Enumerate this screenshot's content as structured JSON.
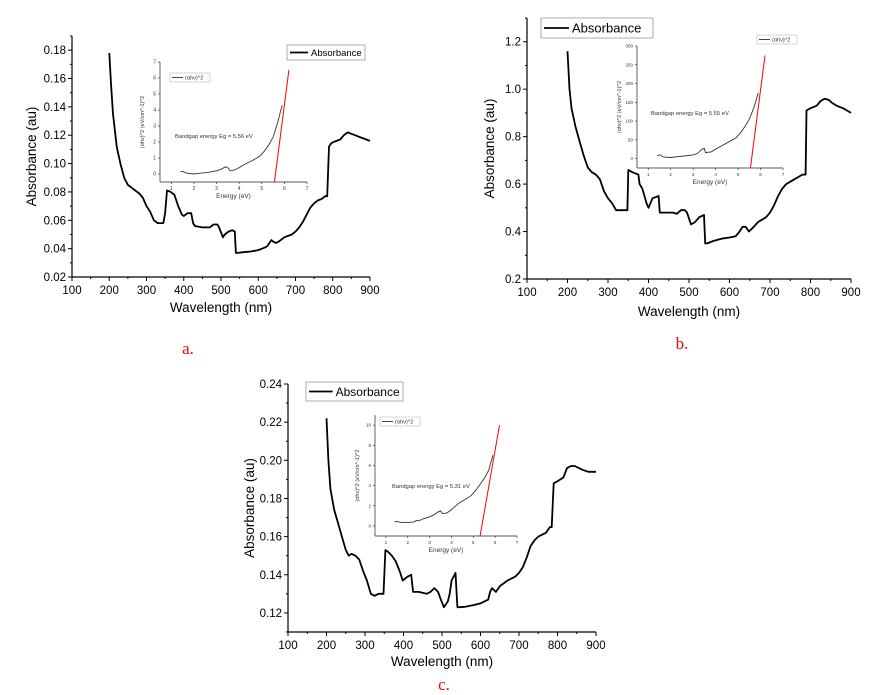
{
  "chart_data": [
    {
      "type": "line",
      "panel_label": "a.",
      "xlabel": "Wavelength (nm)",
      "ylabel": "Absorbance (au)",
      "xlim": [
        100,
        900
      ],
      "ylim": [
        0.02,
        0.19
      ],
      "xticks": [
        100,
        200,
        300,
        400,
        500,
        600,
        700,
        800,
        900
      ],
      "xtick_labels": [
        "100",
        "200",
        "300",
        "400",
        "500",
        "600",
        "700",
        "800",
        "900"
      ],
      "yticks": [
        0.02,
        0.04,
        0.06,
        0.08,
        0.1,
        0.12,
        0.14,
        0.16,
        0.18
      ],
      "ytick_labels": [
        "0.02",
        "0.04",
        "0.06",
        "0.08",
        "0.10",
        "0.12",
        "0.14",
        "0.16",
        "0.18"
      ],
      "grid": false,
      "legend": {
        "placement": "top-right",
        "entries": [
          "Absorbance"
        ]
      },
      "series": [
        {
          "name": "Absorbance",
          "color": "#000000",
          "x": [
            200,
            205,
            210,
            220,
            230,
            240,
            250,
            260,
            270,
            280,
            290,
            300,
            310,
            320,
            330,
            345,
            350,
            355,
            365,
            375,
            385,
            395,
            400,
            410,
            420,
            425,
            430,
            450,
            470,
            480,
            490,
            495,
            505,
            510,
            520,
            530,
            537,
            540,
            545,
            560,
            580,
            600,
            620,
            625,
            635,
            640,
            648,
            655,
            670,
            690,
            700,
            710,
            720,
            730,
            740,
            750,
            760,
            770,
            780,
            785,
            790,
            795,
            800,
            810,
            820,
            830,
            840,
            850,
            860,
            870,
            880,
            890,
            900
          ],
          "y": [
            0.178,
            0.155,
            0.135,
            0.112,
            0.1,
            0.09,
            0.085,
            0.083,
            0.081,
            0.079,
            0.076,
            0.07,
            0.066,
            0.06,
            0.058,
            0.058,
            0.065,
            0.081,
            0.08,
            0.078,
            0.07,
            0.064,
            0.063,
            0.065,
            0.065,
            0.058,
            0.056,
            0.055,
            0.055,
            0.057,
            0.057,
            0.055,
            0.048,
            0.05,
            0.052,
            0.053,
            0.052,
            0.037,
            0.037,
            0.0375,
            0.038,
            0.039,
            0.041,
            0.042,
            0.046,
            0.045,
            0.044,
            0.045,
            0.048,
            0.05,
            0.052,
            0.055,
            0.059,
            0.064,
            0.069,
            0.072,
            0.074,
            0.075,
            0.077,
            0.077,
            0.112,
            0.114,
            0.115,
            0.116,
            0.117,
            0.12,
            0.122,
            0.121,
            0.12,
            0.119,
            0.118,
            0.117,
            0.116
          ]
        }
      ],
      "inset": {
        "xlabel": "Energy (eV)",
        "ylabel": "(αhν)^2 (eV/cm^-1)^2",
        "xlim": [
          0.5,
          7
        ],
        "ylim": [
          -0.5,
          7
        ],
        "xticks": [
          1,
          2,
          3,
          4,
          5,
          6,
          7
        ],
        "xtick_labels": [
          "1",
          "2",
          "3",
          "4",
          "5",
          "6",
          "7"
        ],
        "yticks": [
          0,
          1,
          2,
          3,
          4,
          5,
          6,
          7
        ],
        "ytick_labels": [
          "0",
          "1",
          "2",
          "3",
          "4",
          "5",
          "6",
          "7"
        ],
        "legend": {
          "placement": "top-left",
          "entries": [
            "(αhν)^2"
          ]
        },
        "annotation": "Bandgap energy Eg = 5.56 eV",
        "series": [
          {
            "name": "(αhν)^2",
            "color": "#333333",
            "x": [
              1.4,
              1.5,
              1.6,
              1.7,
              2.0,
              2.3,
              2.6,
              3.0,
              3.2,
              3.4,
              3.5,
              3.6,
              3.8,
              4.0,
              4.3,
              4.6,
              4.9,
              5.1,
              5.3,
              5.5,
              5.7,
              5.9
            ],
            "y": [
              0.15,
              0.15,
              0.1,
              0.05,
              0.0,
              0.05,
              0.1,
              0.2,
              0.3,
              0.45,
              0.4,
              0.2,
              0.25,
              0.4,
              0.65,
              0.85,
              1.1,
              1.4,
              1.8,
              2.3,
              3.2,
              4.3
            ]
          }
        ],
        "fit_line": {
          "name": "linear fit",
          "color": "#ff0000",
          "x": [
            5.56,
            6.2
          ],
          "y": [
            -0.5,
            6.5
          ]
        }
      }
    },
    {
      "type": "line",
      "panel_label": "b.",
      "xlabel": "Wavelength (nm)",
      "ylabel": "Absorbance (au)",
      "xlim": [
        100,
        900
      ],
      "ylim": [
        0.2,
        1.3
      ],
      "xticks": [
        100,
        200,
        300,
        400,
        500,
        600,
        700,
        800,
        900
      ],
      "xtick_labels": [
        "100",
        "200",
        "300",
        "400",
        "500",
        "600",
        "700",
        "800",
        "900"
      ],
      "yticks": [
        0.2,
        0.4,
        0.6,
        0.8,
        1.0,
        1.2
      ],
      "ytick_labels": [
        "0.2",
        "0.4",
        "0.6",
        "0.8",
        "1.0",
        "1.2"
      ],
      "grid": false,
      "legend": {
        "placement": "top-left",
        "entries": [
          "Absorbance"
        ]
      },
      "series": [
        {
          "name": "Absorbance",
          "color": "#000000",
          "x": [
            200,
            205,
            210,
            220,
            230,
            240,
            250,
            260,
            270,
            280,
            290,
            300,
            310,
            320,
            325,
            335,
            348,
            350,
            360,
            375,
            378,
            385,
            395,
            400,
            410,
            425,
            428,
            440,
            460,
            470,
            480,
            490,
            495,
            505,
            515,
            525,
            537,
            540,
            545,
            560,
            580,
            600,
            615,
            625,
            632,
            640,
            648,
            660,
            670,
            690,
            700,
            710,
            720,
            730,
            740,
            750,
            760,
            770,
            780,
            788,
            790,
            800,
            815,
            825,
            835,
            845,
            855,
            865,
            880,
            890,
            900
          ],
          "y": [
            1.16,
            1.0,
            0.92,
            0.84,
            0.78,
            0.72,
            0.67,
            0.65,
            0.64,
            0.62,
            0.57,
            0.54,
            0.52,
            0.49,
            0.49,
            0.49,
            0.49,
            0.66,
            0.65,
            0.64,
            0.6,
            0.58,
            0.52,
            0.5,
            0.54,
            0.55,
            0.48,
            0.48,
            0.48,
            0.475,
            0.49,
            0.49,
            0.48,
            0.43,
            0.44,
            0.46,
            0.47,
            0.35,
            0.35,
            0.36,
            0.37,
            0.375,
            0.38,
            0.4,
            0.42,
            0.42,
            0.4,
            0.42,
            0.44,
            0.46,
            0.48,
            0.51,
            0.55,
            0.58,
            0.6,
            0.61,
            0.62,
            0.63,
            0.64,
            0.64,
            0.91,
            0.92,
            0.93,
            0.95,
            0.96,
            0.955,
            0.94,
            0.93,
            0.92,
            0.91,
            0.9
          ]
        }
      ],
      "inset": {
        "xlabel": "Energy (eV)",
        "ylabel": "(αhν)^2 (eV/cm^-1)^2",
        "xlim": [
          0.5,
          7
        ],
        "ylim": [
          -25,
          300
        ],
        "xticks": [
          1,
          2,
          3,
          4,
          5,
          6,
          7
        ],
        "xtick_labels": [
          "1",
          "2",
          "3",
          "4",
          "5",
          "6",
          "7"
        ],
        "yticks": [
          0,
          50,
          100,
          150,
          200,
          250,
          300
        ],
        "ytick_labels": [
          "0",
          "50",
          "100",
          "150",
          "200",
          "250",
          "300"
        ],
        "legend": {
          "placement": "top-right",
          "entries": [
            "(αhν)^2"
          ]
        },
        "annotation": "Bandgap energy Eg = 5.55 eV",
        "series": [
          {
            "name": "(αhν)^2",
            "color": "#333333",
            "x": [
              1.4,
              1.5,
              1.6,
              1.7,
              2.0,
              2.3,
              2.6,
              3.0,
              3.2,
              3.4,
              3.5,
              3.55,
              3.8,
              4.0,
              4.3,
              4.6,
              4.9,
              5.1,
              5.3,
              5.5,
              5.7,
              5.9
            ],
            "y": [
              8,
              10,
              7,
              4,
              3,
              5,
              7,
              10,
              14,
              25,
              27,
              16,
              18,
              25,
              35,
              45,
              55,
              68,
              85,
              105,
              135,
              175
            ]
          }
        ],
        "fit_line": {
          "name": "linear fit",
          "color": "#ff0000",
          "x": [
            5.55,
            6.2
          ],
          "y": [
            -25,
            275
          ]
        }
      }
    },
    {
      "type": "line",
      "panel_label": "c.",
      "xlabel": "Wavelength (nm)",
      "ylabel": "Absorbance (au)",
      "xlim": [
        100,
        900
      ],
      "ylim": [
        0.11,
        0.24
      ],
      "xticks": [
        100,
        200,
        300,
        400,
        500,
        600,
        700,
        800,
        900
      ],
      "xtick_labels": [
        "100",
        "200",
        "300",
        "400",
        "500",
        "600",
        "700",
        "800",
        "900"
      ],
      "yticks": [
        0.12,
        0.14,
        0.16,
        0.18,
        0.2,
        0.22,
        0.24
      ],
      "ytick_labels": [
        "0.12",
        "0.14",
        "0.16",
        "0.18",
        "0.20",
        "0.22",
        "0.24"
      ],
      "grid": false,
      "legend": {
        "placement": "top-left",
        "entries": [
          "Absorbance"
        ]
      },
      "series": [
        {
          "name": "Absorbance",
          "color": "#000000",
          "x": [
            200,
            205,
            210,
            220,
            230,
            240,
            250,
            258,
            265,
            275,
            285,
            295,
            305,
            315,
            325,
            335,
            348,
            353,
            360,
            370,
            380,
            390,
            398,
            410,
            420,
            425,
            440,
            460,
            470,
            480,
            490,
            495,
            505,
            515,
            520,
            525,
            535,
            540,
            545,
            560,
            580,
            600,
            620,
            625,
            630,
            640,
            650,
            670,
            690,
            700,
            710,
            720,
            730,
            740,
            750,
            760,
            770,
            780,
            785,
            790,
            800,
            815,
            825,
            835,
            845,
            855,
            865,
            880,
            890,
            900
          ],
          "y": [
            0.222,
            0.2,
            0.185,
            0.174,
            0.167,
            0.16,
            0.153,
            0.15,
            0.151,
            0.15,
            0.148,
            0.142,
            0.137,
            0.13,
            0.129,
            0.13,
            0.13,
            0.153,
            0.152,
            0.15,
            0.147,
            0.142,
            0.137,
            0.139,
            0.14,
            0.131,
            0.131,
            0.13,
            0.131,
            0.133,
            0.131,
            0.128,
            0.123,
            0.126,
            0.13,
            0.137,
            0.141,
            0.123,
            0.123,
            0.1232,
            0.124,
            0.125,
            0.127,
            0.131,
            0.133,
            0.131,
            0.134,
            0.137,
            0.139,
            0.141,
            0.144,
            0.149,
            0.155,
            0.158,
            0.16,
            0.161,
            0.162,
            0.165,
            0.165,
            0.188,
            0.189,
            0.191,
            0.196,
            0.197,
            0.197,
            0.196,
            0.195,
            0.194,
            0.194,
            0.194
          ]
        }
      ],
      "inset": {
        "xlabel": "Energy (eV)",
        "ylabel": "(αhν)^2 (eV/cm^-1)^2",
        "xlim": [
          0.5,
          7
        ],
        "ylim": [
          -1,
          11
        ],
        "xticks": [
          1,
          2,
          3,
          4,
          5,
          6,
          7
        ],
        "xtick_labels": [
          "1",
          "2",
          "3",
          "4",
          "5",
          "6",
          "7"
        ],
        "yticks": [
          0,
          2,
          4,
          6,
          8,
          10
        ],
        "ytick_labels": [
          "0",
          "2",
          "4",
          "6",
          "8",
          "10"
        ],
        "legend": {
          "placement": "top-left",
          "entries": [
            "(αhν)^2"
          ]
        },
        "annotation": "Bandgap energy Eg = 5.31 eV",
        "series": [
          {
            "name": "(αhν)^2",
            "color": "#333333",
            "x": [
              1.4,
              1.5,
              1.7,
              2.0,
              2.3,
              2.4,
              2.5,
              2.7,
              3.0,
              3.2,
              3.4,
              3.5,
              3.6,
              3.8,
              4.0,
              4.3,
              4.6,
              4.9,
              5.1,
              5.3,
              5.5,
              5.7,
              5.9
            ],
            "y": [
              0.4,
              0.45,
              0.35,
              0.35,
              0.4,
              0.55,
              0.5,
              0.7,
              0.9,
              1.1,
              1.4,
              1.5,
              1.2,
              1.3,
              1.6,
              2.2,
              2.6,
              3.0,
              3.5,
              4.1,
              4.7,
              5.5,
              7.0
            ]
          }
        ],
        "fit_line": {
          "name": "linear fit",
          "color": "#ff0000",
          "x": [
            5.31,
            6.2
          ],
          "y": [
            -1,
            10
          ]
        }
      }
    }
  ]
}
